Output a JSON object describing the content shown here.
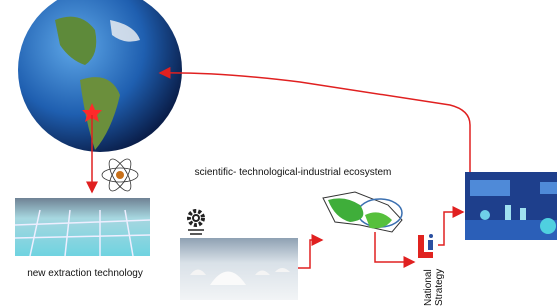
{
  "labels": {
    "ecosystem": "scientific- technological-industrial ecosystem",
    "extraction": "new extraction technology",
    "strategy": [
      "National",
      "Strategy"
    ]
  }
}
